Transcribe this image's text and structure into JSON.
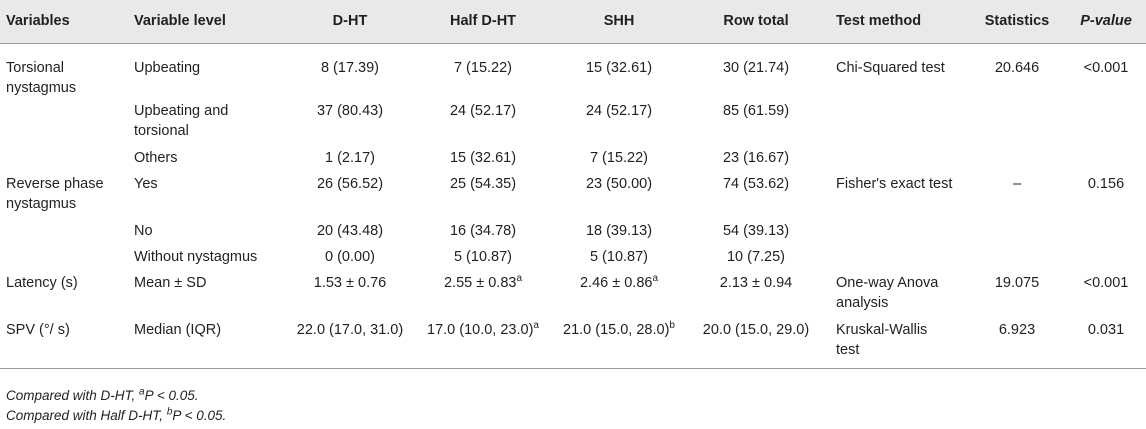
{
  "headers": [
    "Variables",
    "Variable level",
    "D-HT",
    "Half D-HT",
    "SHH",
    "Row total",
    "Test method",
    "Statistics",
    "P-value"
  ],
  "rows": {
    "r1": {
      "var1": "Torsional",
      "var2": "nystagmus",
      "level": "Upbeating",
      "dht": "8 (17.39)",
      "half": "7 (15.22)",
      "shh": "15 (32.61)",
      "total": "30 (21.74)",
      "method": "Chi-Squared test",
      "stat": "20.646",
      "p": "<0.001"
    },
    "r2": {
      "level1": "Upbeating and",
      "level2": "torsional",
      "dht": "37 (80.43)",
      "half": "24 (52.17)",
      "shh": "24 (52.17)",
      "total": "85 (61.59)"
    },
    "r3": {
      "level": "Others",
      "dht": "1 (2.17)",
      "half": "15 (32.61)",
      "shh": "7 (15.22)",
      "total": "23 (16.67)"
    },
    "r4": {
      "var1": "Reverse phase",
      "var2": "nystagmus",
      "level": "Yes",
      "dht": "26 (56.52)",
      "half": "25 (54.35)",
      "shh": "23 (50.00)",
      "total": "74 (53.62)",
      "method": "Fisher's exact test",
      "stat": "–",
      "p": "0.156"
    },
    "r5": {
      "level": "No",
      "dht": "20 (43.48)",
      "half": "16 (34.78)",
      "shh": "18 (39.13)",
      "total": "54 (39.13)"
    },
    "r6": {
      "level": "Without nystagmus",
      "dht": "0 (0.00)",
      "half": "5 (10.87)",
      "shh": "5 (10.87)",
      "total": "10 (7.25)"
    },
    "r7": {
      "var": "Latency (s)",
      "level": "Mean ± SD",
      "dht": "1.53 ± 0.76",
      "half": "2.55 ± 0.83",
      "half_sup": "a",
      "shh": "2.46 ± 0.86",
      "shh_sup": "a",
      "total": "2.13 ± 0.94",
      "method1": "One-way Anova",
      "method2": "analysis",
      "stat": "19.075",
      "p": "<0.001"
    },
    "r8": {
      "var": "SPV (°/ s)",
      "level": "Median (IQR)",
      "dht": "22.0 (17.0, 31.0)",
      "half": "17.0 (10.0, 23.0)",
      "half_sup": "a",
      "shh": "21.0 (15.0, 28.0)",
      "shh_sup": "b",
      "total": "20.0 (15.0, 29.0)",
      "method1": "Kruskal-Wallis",
      "method2": "test",
      "stat": "6.923",
      "p": "0.031"
    }
  },
  "notes": {
    "n1_pre": "Compared with D-HT, ",
    "n1_sup": "a",
    "n1_post": "P < 0.05.",
    "n2_pre": "Compared with Half D-HT, ",
    "n2_sup": "b",
    "n2_post": "P < 0.05."
  }
}
